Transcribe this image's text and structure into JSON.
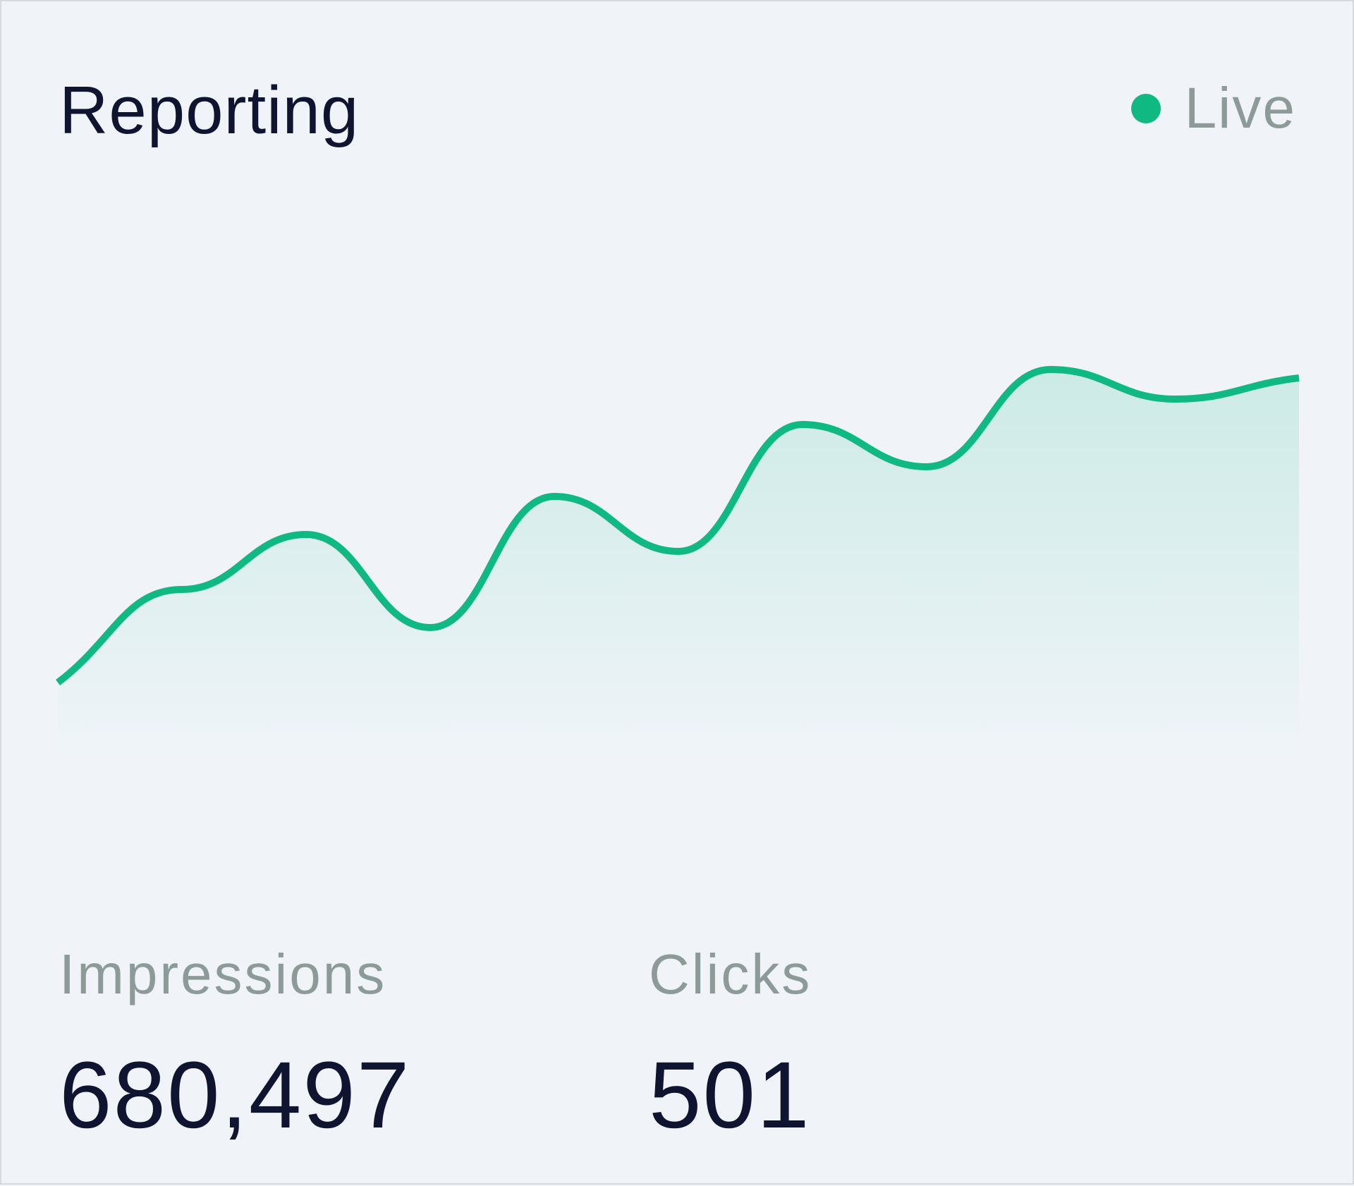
{
  "header": {
    "title": "Reporting",
    "status_label": "Live"
  },
  "colors": {
    "accent": "#10b981",
    "text_primary": "#0f1430",
    "text_muted": "#8c9a98",
    "background": "#f0f4f9"
  },
  "chart_data": {
    "type": "area",
    "title": "",
    "xlabel": "",
    "ylabel": "",
    "grid": false,
    "legend": "none",
    "x": [
      0,
      1,
      2,
      3,
      4,
      5,
      6,
      7,
      8,
      9,
      10
    ],
    "values": [
      9,
      31,
      44,
      22,
      53,
      40,
      70,
      60,
      83,
      76,
      81
    ],
    "ylim": [
      -10,
      100
    ]
  },
  "metrics": [
    {
      "label": "Impressions",
      "value": "680,497"
    },
    {
      "label": "Clicks",
      "value": "501"
    }
  ]
}
